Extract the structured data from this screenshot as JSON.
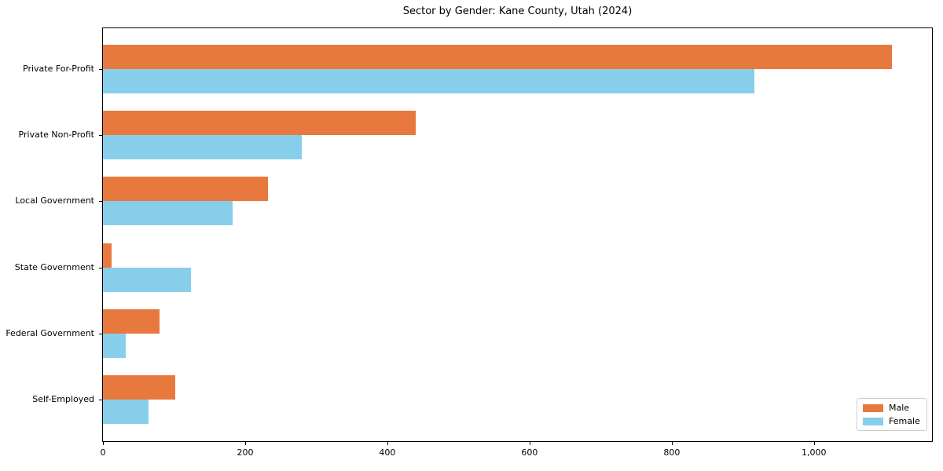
{
  "figure": {
    "title": "Sector by Gender: Kane County, Utah (2024)"
  },
  "chart_data": {
    "type": "bar",
    "orientation": "horizontal",
    "title": "Sector by Gender: Kane County, Utah (2024)",
    "xlabel": "",
    "ylabel": "",
    "categories": [
      "Private For-Profit",
      "Private Non-Profit",
      "Local Government",
      "State Government",
      "Federal Government",
      "Self-Employed"
    ],
    "series": [
      {
        "name": "Male",
        "color": "#E8793E",
        "values": [
          1110,
          440,
          232,
          12,
          80,
          102
        ]
      },
      {
        "name": "Female",
        "color": "#87CEEB",
        "values": [
          916,
          280,
          182,
          124,
          32,
          64
        ]
      }
    ],
    "xlim": [
      0,
      1166
    ],
    "xticks": {
      "values": [
        0,
        200,
        400,
        600,
        800,
        1000
      ],
      "labels": [
        "0",
        "200",
        "400",
        "600",
        "800",
        "1,000"
      ]
    },
    "grid": false,
    "legend_position": "lower right"
  }
}
